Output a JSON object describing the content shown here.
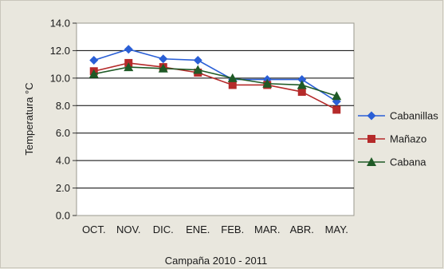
{
  "chart_data": {
    "type": "line",
    "title": "",
    "xlabel": "Campaña 2010 - 2011",
    "ylabel": "Temperatura °C",
    "ylim": [
      0,
      14
    ],
    "yticks": [
      "0.0",
      "2.0",
      "4.0",
      "6.0",
      "8.0",
      "10.0",
      "12.0",
      "14.0"
    ],
    "categories": [
      "OCT.",
      "NOV.",
      "DIC.",
      "ENE.",
      "FEB.",
      "MAR.",
      "ABR.",
      "MAY."
    ],
    "grid": true,
    "legend_position": "right",
    "series": [
      {
        "name": "Cabanillas",
        "marker": "diamond",
        "color": "#2a5fd6",
        "values": [
          11.3,
          12.1,
          11.4,
          11.3,
          9.9,
          9.9,
          9.9,
          8.3
        ]
      },
      {
        "name": "Mañazo",
        "marker": "square",
        "color": "#b52a2a",
        "values": [
          10.5,
          11.1,
          10.8,
          10.4,
          9.5,
          9.5,
          9.0,
          7.7
        ]
      },
      {
        "name": "Cabana",
        "marker": "triangle",
        "color": "#1f5a26",
        "values": [
          10.3,
          10.8,
          10.7,
          10.6,
          10.0,
          9.6,
          9.5,
          8.7
        ]
      }
    ]
  }
}
